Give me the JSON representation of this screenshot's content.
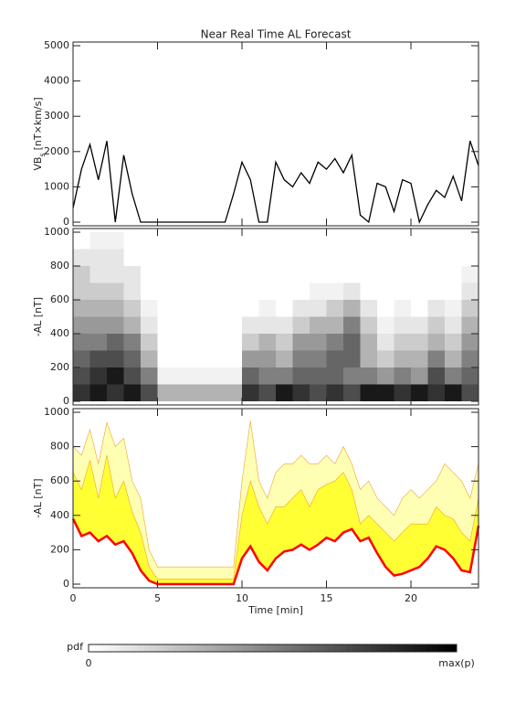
{
  "chart_data": [
    {
      "type": "line",
      "title": "Near Real Time AL Forecast",
      "ylabel": "VB",
      "ylabel_sub": "s",
      "ylabel_unit": "[nT×km/s]",
      "x": [
        0,
        0.5,
        1,
        1.5,
        2,
        2.5,
        3,
        3.5,
        4,
        4.5,
        5,
        5.5,
        6,
        6.5,
        7,
        7.5,
        8,
        8.5,
        9,
        9.5,
        10,
        10.5,
        11,
        11.5,
        12,
        12.5,
        13,
        13.5,
        14,
        14.5,
        15,
        15.5,
        16,
        16.5,
        17,
        17.5,
        18,
        18.5,
        19,
        19.5,
        20,
        20.5,
        21,
        21.5,
        22,
        22.5,
        23,
        23.5,
        24
      ],
      "series": [
        {
          "color": "#000000",
          "values": [
            400,
            1500,
            2200,
            1200,
            2300,
            0,
            1900,
            800,
            0,
            0,
            0,
            0,
            0,
            0,
            0,
            0,
            0,
            0,
            0,
            800,
            1700,
            1200,
            0,
            0,
            1700,
            1200,
            1000,
            1400,
            1100,
            1700,
            1500,
            1800,
            1400,
            1900,
            200,
            0,
            1100,
            1000,
            300,
            1200,
            1100,
            0,
            500,
            900,
            700,
            1300,
            600,
            2300,
            1600
          ]
        }
      ],
      "xlim": [
        0,
        24
      ],
      "xticks": [
        0,
        5,
        10,
        15,
        20
      ],
      "ylim": [
        0,
        5000
      ],
      "yticks": [
        0,
        1000,
        2000,
        3000,
        4000,
        5000
      ]
    },
    {
      "type": "heatmap",
      "ylabel": "-AL [nT]",
      "x_bins": [
        0,
        1,
        2,
        3,
        4,
        5,
        6,
        7,
        8,
        9,
        10,
        11,
        12,
        13,
        14,
        15,
        16,
        17,
        18,
        19,
        20,
        21,
        22,
        23,
        24
      ],
      "y_bins": [
        0,
        100,
        200,
        300,
        400,
        500,
        600,
        700,
        800,
        900,
        1000
      ],
      "z": [
        [
          0.8,
          0.7,
          0.6,
          0.5,
          0.4,
          0.3,
          0.2,
          0.2,
          0.1,
          0
        ],
        [
          0.9,
          0.8,
          0.7,
          0.5,
          0.4,
          0.3,
          0.2,
          0.1,
          0.1,
          0.05
        ],
        [
          0.8,
          0.9,
          0.7,
          0.6,
          0.4,
          0.3,
          0.2,
          0.1,
          0.1,
          0.05
        ],
        [
          0.9,
          0.7,
          0.6,
          0.5,
          0.3,
          0.2,
          0.1,
          0.1,
          0,
          0
        ],
        [
          0.7,
          0.5,
          0.3,
          0.2,
          0.1,
          0.05,
          0,
          0,
          0,
          0
        ],
        [
          0.3,
          0.05,
          0,
          0,
          0,
          0,
          0,
          0,
          0,
          0
        ],
        [
          0.3,
          0.05,
          0,
          0,
          0,
          0,
          0,
          0,
          0,
          0
        ],
        [
          0.3,
          0.05,
          0,
          0,
          0,
          0,
          0,
          0,
          0,
          0
        ],
        [
          0.3,
          0.05,
          0,
          0,
          0,
          0,
          0,
          0,
          0,
          0
        ],
        [
          0.3,
          0.05,
          0,
          0,
          0,
          0,
          0,
          0,
          0,
          0
        ],
        [
          0.8,
          0.6,
          0.4,
          0.2,
          0.1,
          0,
          0,
          0,
          0,
          0
        ],
        [
          0.7,
          0.5,
          0.4,
          0.3,
          0.1,
          0.05,
          0,
          0,
          0,
          0
        ],
        [
          0.9,
          0.5,
          0.3,
          0.2,
          0.1,
          0,
          0,
          0,
          0,
          0
        ],
        [
          0.8,
          0.6,
          0.5,
          0.4,
          0.2,
          0.1,
          0,
          0,
          0,
          0
        ],
        [
          0.7,
          0.6,
          0.5,
          0.4,
          0.3,
          0.1,
          0.05,
          0,
          0,
          0
        ],
        [
          0.8,
          0.6,
          0.6,
          0.5,
          0.3,
          0.2,
          0.05,
          0,
          0,
          0
        ],
        [
          0.7,
          0.5,
          0.6,
          0.6,
          0.5,
          0.3,
          0.1,
          0,
          0,
          0
        ],
        [
          0.9,
          0.5,
          0.3,
          0.3,
          0.2,
          0.1,
          0,
          0,
          0,
          0
        ],
        [
          0.9,
          0.4,
          0.2,
          0.1,
          0.05,
          0,
          0,
          0,
          0,
          0
        ],
        [
          0.8,
          0.5,
          0.3,
          0.2,
          0.1,
          0.05,
          0,
          0,
          0,
          0
        ],
        [
          0.9,
          0.4,
          0.3,
          0.2,
          0.1,
          0,
          0,
          0,
          0,
          0
        ],
        [
          0.8,
          0.7,
          0.5,
          0.3,
          0.2,
          0.1,
          0,
          0,
          0,
          0
        ],
        [
          0.9,
          0.5,
          0.3,
          0.2,
          0.1,
          0.05,
          0,
          0,
          0,
          0
        ],
        [
          0.7,
          0.6,
          0.5,
          0.4,
          0.3,
          0.2,
          0.1,
          0.05,
          0,
          0
        ]
      ],
      "colorbar": {
        "label": "pdf",
        "min_label": "0",
        "max_label": "max(p)"
      },
      "xlim": [
        0,
        24
      ],
      "xticks": [
        0,
        5,
        10,
        15,
        20
      ],
      "ylim": [
        0,
        1000
      ],
      "yticks": [
        0,
        200,
        400,
        600,
        800,
        1000
      ]
    },
    {
      "type": "band",
      "ylabel": "-AL [nT]",
      "xlabel": "Time [min]",
      "x": [
        0,
        0.5,
        1,
        1.5,
        2,
        2.5,
        3,
        3.5,
        4,
        4.5,
        5,
        5.5,
        6,
        6.5,
        7,
        7.5,
        8,
        8.5,
        9,
        9.5,
        10,
        10.5,
        11,
        11.5,
        12,
        12.5,
        13,
        13.5,
        14,
        14.5,
        15,
        15.5,
        16,
        16.5,
        17,
        17.5,
        18,
        18.5,
        19,
        19.5,
        20,
        20.5,
        21,
        21.5,
        22,
        22.5,
        23,
        23.5,
        24
      ],
      "series": [
        {
          "color": "#ff0000",
          "style": "line",
          "values": [
            380,
            280,
            300,
            250,
            280,
            230,
            250,
            180,
            80,
            20,
            0,
            0,
            0,
            0,
            0,
            0,
            0,
            0,
            0,
            0,
            150,
            220,
            130,
            80,
            150,
            190,
            200,
            230,
            200,
            230,
            270,
            250,
            300,
            320,
            250,
            270,
            180,
            100,
            50,
            60,
            80,
            100,
            150,
            220,
            200,
            150,
            80,
            70,
            340
          ]
        },
        {
          "color": "#ffffb4",
          "style": "area",
          "values": [
            800,
            750,
            900,
            700,
            940,
            800,
            850,
            600,
            500,
            200,
            100,
            100,
            100,
            100,
            100,
            100,
            100,
            100,
            100,
            100,
            600,
            950,
            600,
            500,
            650,
            700,
            700,
            750,
            700,
            700,
            750,
            700,
            800,
            700,
            550,
            600,
            500,
            450,
            400,
            500,
            550,
            500,
            550,
            600,
            700,
            650,
            600,
            500,
            700
          ]
        },
        {
          "color": "#ffff33",
          "style": "area",
          "values": [
            650,
            550,
            720,
            500,
            750,
            500,
            600,
            420,
            300,
            100,
            30,
            30,
            30,
            30,
            30,
            30,
            30,
            30,
            30,
            30,
            400,
            600,
            450,
            350,
            450,
            450,
            500,
            550,
            450,
            550,
            580,
            600,
            650,
            550,
            350,
            400,
            350,
            300,
            250,
            300,
            350,
            350,
            350,
            450,
            400,
            380,
            300,
            250,
            500
          ]
        }
      ],
      "xlim": [
        0,
        24
      ],
      "xticks": [
        0,
        5,
        10,
        15,
        20
      ],
      "ylim": [
        0,
        1000
      ],
      "yticks": [
        0,
        200,
        400,
        600,
        800,
        1000
      ]
    }
  ]
}
